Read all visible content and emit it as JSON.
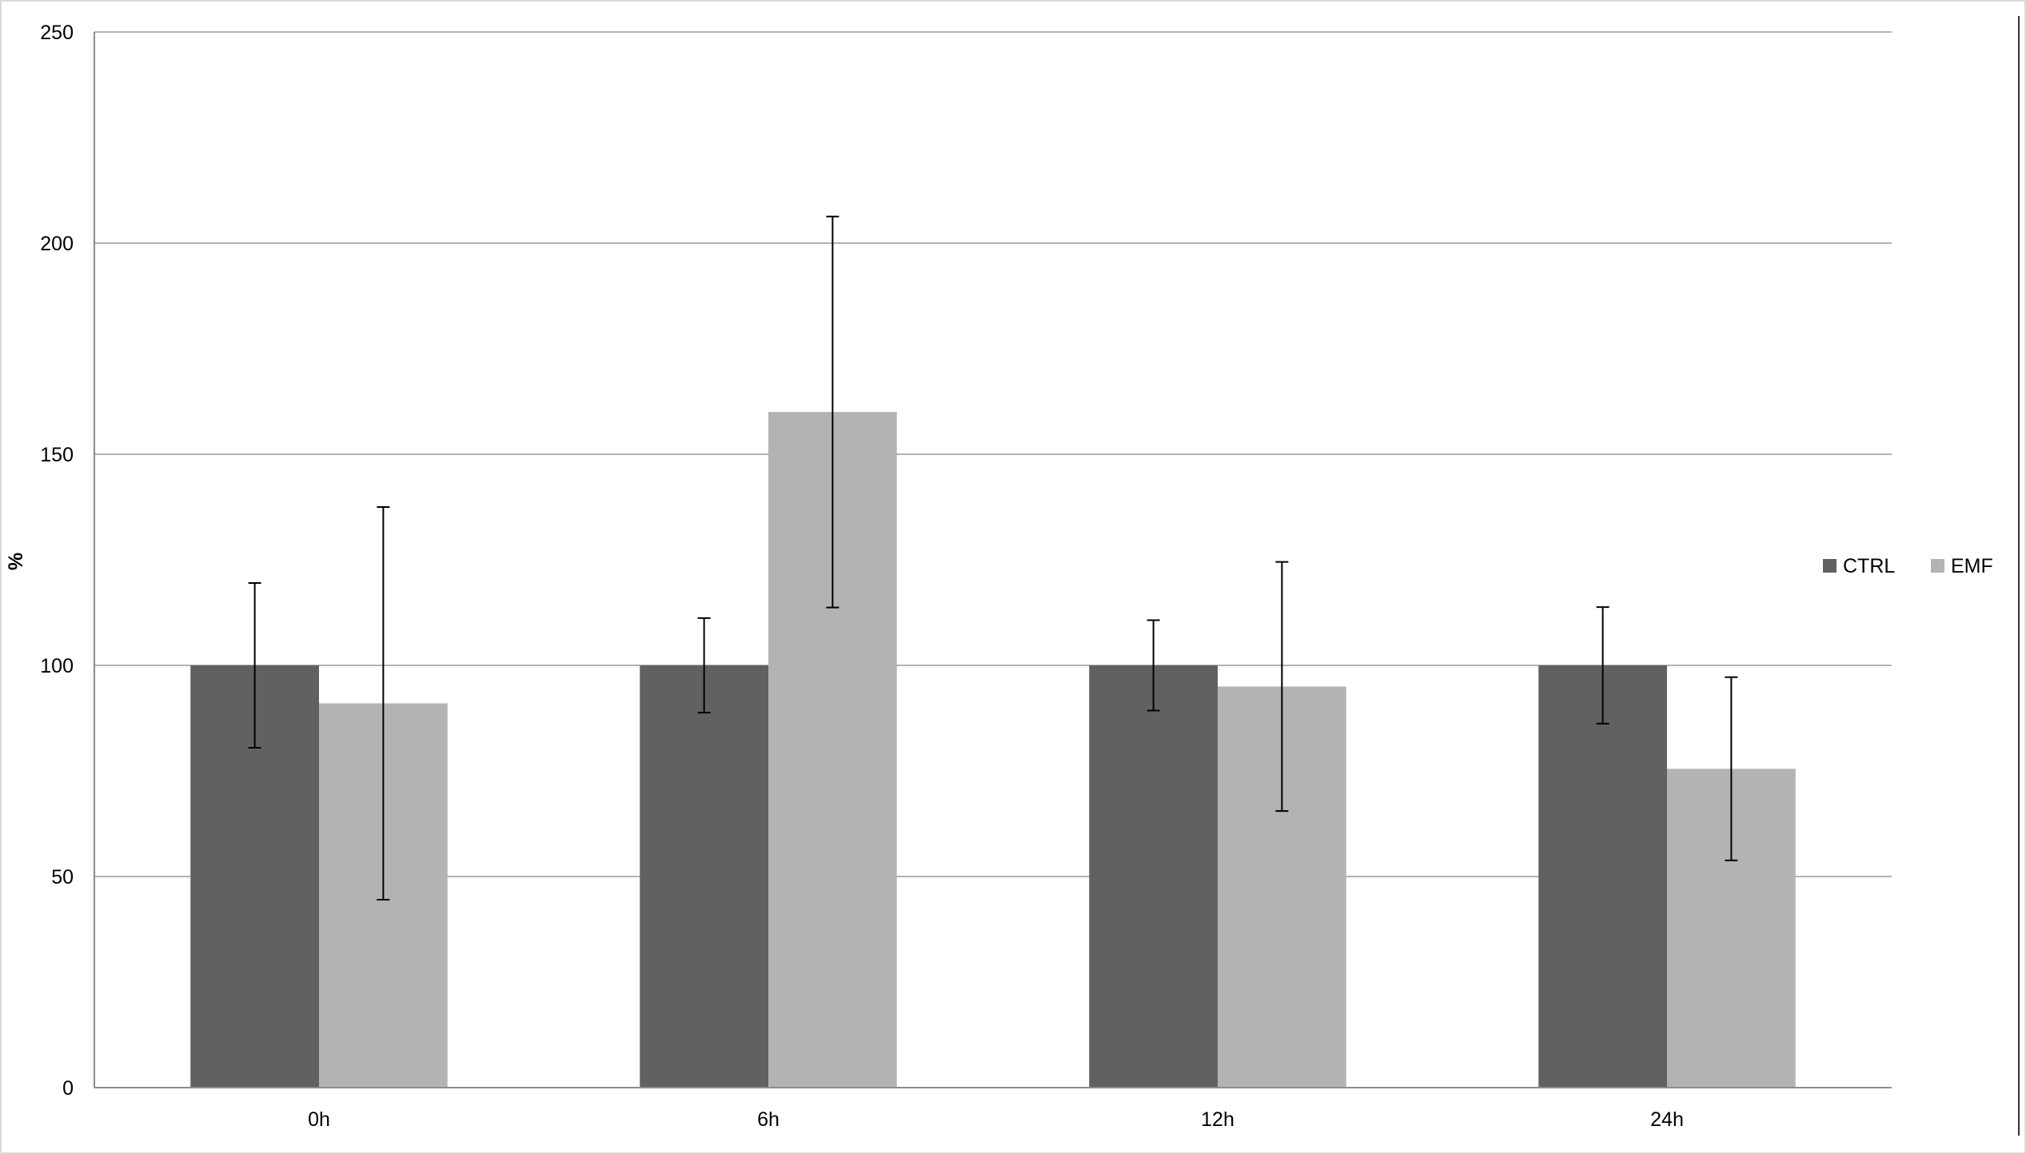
{
  "chart_data": {
    "type": "bar",
    "title": "",
    "xlabel": "",
    "ylabel": "%",
    "ylim": [
      0,
      250
    ],
    "yticks": [
      0,
      50,
      100,
      150,
      200,
      250
    ],
    "grid": true,
    "legend_position": "right",
    "categories": [
      "0h",
      "6h",
      "12h",
      "24h"
    ],
    "series": [
      {
        "name": "CTRL",
        "color": "#616161",
        "values": [
          100,
          100,
          100,
          100
        ],
        "errors": [
          19.5,
          11.2,
          10.7,
          13.8
        ]
      },
      {
        "name": "EMF",
        "color": "#b3b3b3",
        "values": [
          91,
          160,
          95,
          75.5
        ],
        "errors": [
          46.5,
          46.3,
          29.5,
          21.7
        ]
      }
    ]
  }
}
